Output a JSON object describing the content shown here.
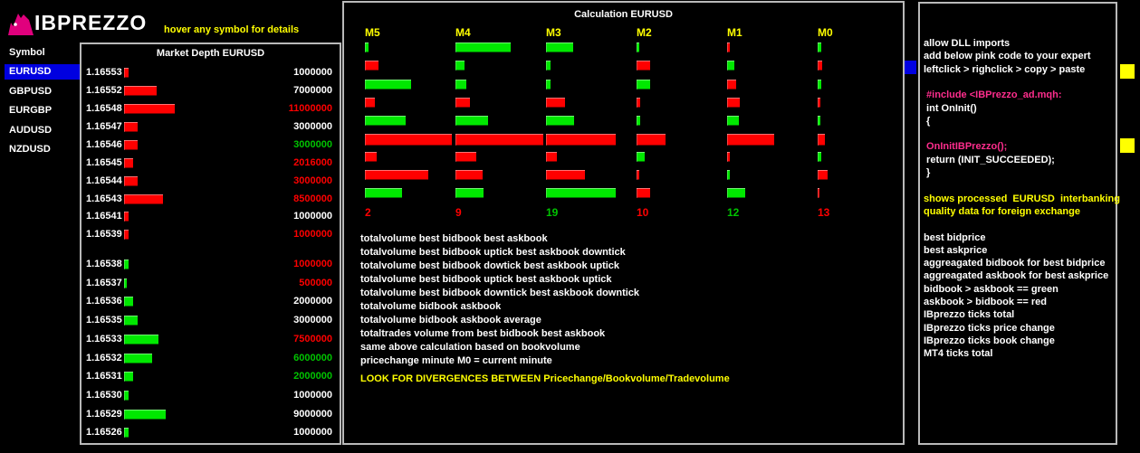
{
  "header": {
    "logo_text": "IBPREZZO",
    "hint": "hover any symbol for details"
  },
  "colors": {
    "red": "#ff0000",
    "green": "#00e800",
    "yellow": "#ffff00",
    "white": "#ffffff",
    "pink": "#ff2d8d",
    "selection_blue": "#0000e0",
    "panel_border_gray": "#b9b9b9",
    "logo_pink": "#e0007d"
  },
  "sidebar": {
    "header": "Symbol",
    "items": [
      {
        "label": "EURUSD",
        "selected": true
      },
      {
        "label": "GBPUSD",
        "selected": false
      },
      {
        "label": "EURGBP",
        "selected": false
      },
      {
        "label": "AUDUSD",
        "selected": false
      },
      {
        "label": "NZDUSD",
        "selected": false
      }
    ]
  },
  "market_depth": {
    "title": "Market Depth EURUSD",
    "rows": [
      {
        "price": "1.16553",
        "volume": "1000000",
        "volume_millions": 1.0,
        "side": "ask",
        "volume_color": "white"
      },
      {
        "price": "1.16552",
        "volume": "7000000",
        "volume_millions": 7.0,
        "side": "ask",
        "volume_color": "white"
      },
      {
        "price": "1.16548",
        "volume": "11000000",
        "volume_millions": 11.0,
        "side": "ask",
        "volume_color": "red"
      },
      {
        "price": "1.16547",
        "volume": "3000000",
        "volume_millions": 3.0,
        "side": "ask",
        "volume_color": "white"
      },
      {
        "price": "1.16546",
        "volume": "3000000",
        "volume_millions": 3.0,
        "side": "ask",
        "volume_color": "green"
      },
      {
        "price": "1.16545",
        "volume": "2016000",
        "volume_millions": 2.016,
        "side": "ask",
        "volume_color": "red"
      },
      {
        "price": "1.16544",
        "volume": "3000000",
        "volume_millions": 3.0,
        "side": "ask",
        "volume_color": "red"
      },
      {
        "price": "1.16543",
        "volume": "8500000",
        "volume_millions": 8.5,
        "side": "ask",
        "volume_color": "red"
      },
      {
        "price": "1.16541",
        "volume": "1000000",
        "volume_millions": 1.0,
        "side": "ask",
        "volume_color": "white"
      },
      {
        "price": "1.16539",
        "volume": "1000000",
        "volume_millions": 1.0,
        "side": "ask",
        "volume_color": "red"
      },
      {
        "price": "1.16538",
        "volume": "1000000",
        "volume_millions": 1.0,
        "side": "bid",
        "volume_color": "red"
      },
      {
        "price": "1.16537",
        "volume": "500000",
        "volume_millions": 0.5,
        "side": "bid",
        "volume_color": "red"
      },
      {
        "price": "1.16536",
        "volume": "2000000",
        "volume_millions": 2.0,
        "side": "bid",
        "volume_color": "white"
      },
      {
        "price": "1.16535",
        "volume": "3000000",
        "volume_millions": 3.0,
        "side": "bid",
        "volume_color": "white"
      },
      {
        "price": "1.16533",
        "volume": "7500000",
        "volume_millions": 7.5,
        "side": "bid",
        "volume_color": "red"
      },
      {
        "price": "1.16532",
        "volume": "6000000",
        "volume_millions": 6.0,
        "side": "bid",
        "volume_color": "green"
      },
      {
        "price": "1.16531",
        "volume": "2000000",
        "volume_millions": 2.0,
        "side": "bid",
        "volume_color": "green"
      },
      {
        "price": "1.16530",
        "volume": "1000000",
        "volume_millions": 1.0,
        "side": "bid",
        "volume_color": "white"
      },
      {
        "price": "1.16529",
        "volume": "9000000",
        "volume_millions": 9.0,
        "side": "bid",
        "volume_color": "white"
      },
      {
        "price": "1.16526",
        "volume": "1000000",
        "volume_millions": 1.0,
        "side": "bid",
        "volume_color": "white"
      }
    ]
  },
  "chart_data": {
    "type": "bar",
    "title": "Calculation EURUSD",
    "columns": [
      "M5",
      "M4",
      "M3",
      "M2",
      "M1",
      "M0"
    ],
    "value_units": "relative bar length in pixels (no numeric axis shown)",
    "rows": [
      {
        "label": "totalvolume best bidbook best askbook",
        "values": [
          4,
          61,
          30,
          3,
          3,
          4
        ],
        "colors": [
          "green",
          "green",
          "green",
          "green",
          "red",
          "green"
        ]
      },
      {
        "label": "totalvolume best bidbook uptick best askbook downtick",
        "values": [
          15,
          10,
          5,
          15,
          8,
          5
        ],
        "colors": [
          "red",
          "green",
          "green",
          "red",
          "green",
          "red"
        ]
      },
      {
        "label": "totalvolume best bidbook dowtick best askbook uptick",
        "values": [
          51,
          12,
          5,
          15,
          10,
          4
        ],
        "colors": [
          "green",
          "green",
          "green",
          "green",
          "red",
          "green"
        ]
      },
      {
        "label": "totalvolume best bidbook uptick best askbook uptick",
        "values": [
          11,
          16,
          21,
          4,
          14,
          3
        ],
        "colors": [
          "red",
          "red",
          "red",
          "red",
          "red",
          "red"
        ]
      },
      {
        "label": "totalvolume best bidbook downtick best askbook downtick",
        "values": [
          45,
          36,
          31,
          4,
          13,
          3
        ],
        "colors": [
          "green",
          "green",
          "green",
          "green",
          "green",
          "green"
        ]
      },
      {
        "label": "totalvolume bidbook askbook",
        "values": [
          96,
          97,
          77,
          32,
          52,
          8
        ],
        "colors": [
          "red",
          "red",
          "red",
          "red",
          "red",
          "red"
        ]
      },
      {
        "label": "totalvolume bidbook askbook average",
        "values": [
          13,
          23,
          12,
          9,
          3,
          4
        ],
        "colors": [
          "red",
          "red",
          "red",
          "green",
          "red",
          "green"
        ]
      },
      {
        "label": "totaltrades volume from best bidbook best askbook",
        "values": [
          70,
          30,
          43,
          3,
          3,
          11
        ],
        "colors": [
          "red",
          "red",
          "red",
          "red",
          "green",
          "red"
        ]
      },
      {
        "label": "same above calculation based on bookvolume",
        "values": [
          41,
          31,
          77,
          15,
          20,
          2
        ],
        "colors": [
          "green",
          "green",
          "green",
          "red",
          "green",
          "red"
        ]
      }
    ],
    "footer": {
      "label": "pricechange minute M0 = current minute",
      "values": [
        "2",
        "9",
        "19",
        "10",
        "12",
        "13"
      ],
      "colors": [
        "red",
        "red",
        "green",
        "red",
        "green",
        "red"
      ]
    }
  },
  "calc_panel": {
    "descriptions": [
      "totalvolume best bidbook best askbook",
      "totalvolume best bidbook uptick best askbook downtick",
      "totalvolume best bidbook dowtick best askbook uptick",
      "totalvolume best bidbook uptick best askbook uptick",
      "totalvolume best bidbook downtick best askbook downtick",
      "totalvolume bidbook askbook",
      "totalvolume bidbook askbook average",
      "totaltrades volume from best bidbook best askbook",
      "same above calculation based on bookvolume",
      "pricechange minute M0 = current minute"
    ],
    "warning": "LOOK FOR DIVERGENCES BETWEEN Pricechange/Bookvolume/Tradevolume"
  },
  "right_panel": {
    "lines": [
      {
        "text": "allow DLL imports",
        "color": "white"
      },
      {
        "text": "add below pink code to your expert",
        "color": "white"
      },
      {
        "text": "leftclick > righclick > copy > paste",
        "color": "white"
      },
      {
        "text": "",
        "color": "white"
      },
      {
        "text": " #include <IBPrezzo_ad.mqh:",
        "color": "pink"
      },
      {
        "text": " int OnInit()",
        "color": "white"
      },
      {
        "text": " {",
        "color": "white"
      },
      {
        "text": "",
        "color": "white"
      },
      {
        "text": " OnInitIBPrezzo();",
        "color": "pink"
      },
      {
        "text": " return (INIT_SUCCEEDED);",
        "color": "white"
      },
      {
        "text": " }",
        "color": "white"
      },
      {
        "text": "",
        "color": "white"
      },
      {
        "text": "shows processed  EURUSD  interbanking",
        "color": "yellow"
      },
      {
        "text": "quality data for foreign exchange",
        "color": "yellow"
      },
      {
        "text": "",
        "color": "white"
      },
      {
        "text": "best bidprice",
        "color": "white"
      },
      {
        "text": "best askprice",
        "color": "white"
      },
      {
        "text": "aggreagated bidbook for best bidprice",
        "color": "white"
      },
      {
        "text": "aggreagated askbook for best askprice",
        "color": "white"
      },
      {
        "text": "bidbook > askbook == green",
        "color": "white"
      },
      {
        "text": "askbook > bidbook == red",
        "color": "white"
      },
      {
        "text": "IBprezzo ticks total",
        "color": "white"
      },
      {
        "text": "IBprezzo ticks price change",
        "color": "white"
      },
      {
        "text": "IBprezzo ticks book change",
        "color": "white"
      },
      {
        "text": "MT4 ticks total",
        "color": "white"
      }
    ]
  },
  "markers": {
    "blue_square_color": "#0000e0",
    "yellow_square_color": "#ffff00"
  }
}
